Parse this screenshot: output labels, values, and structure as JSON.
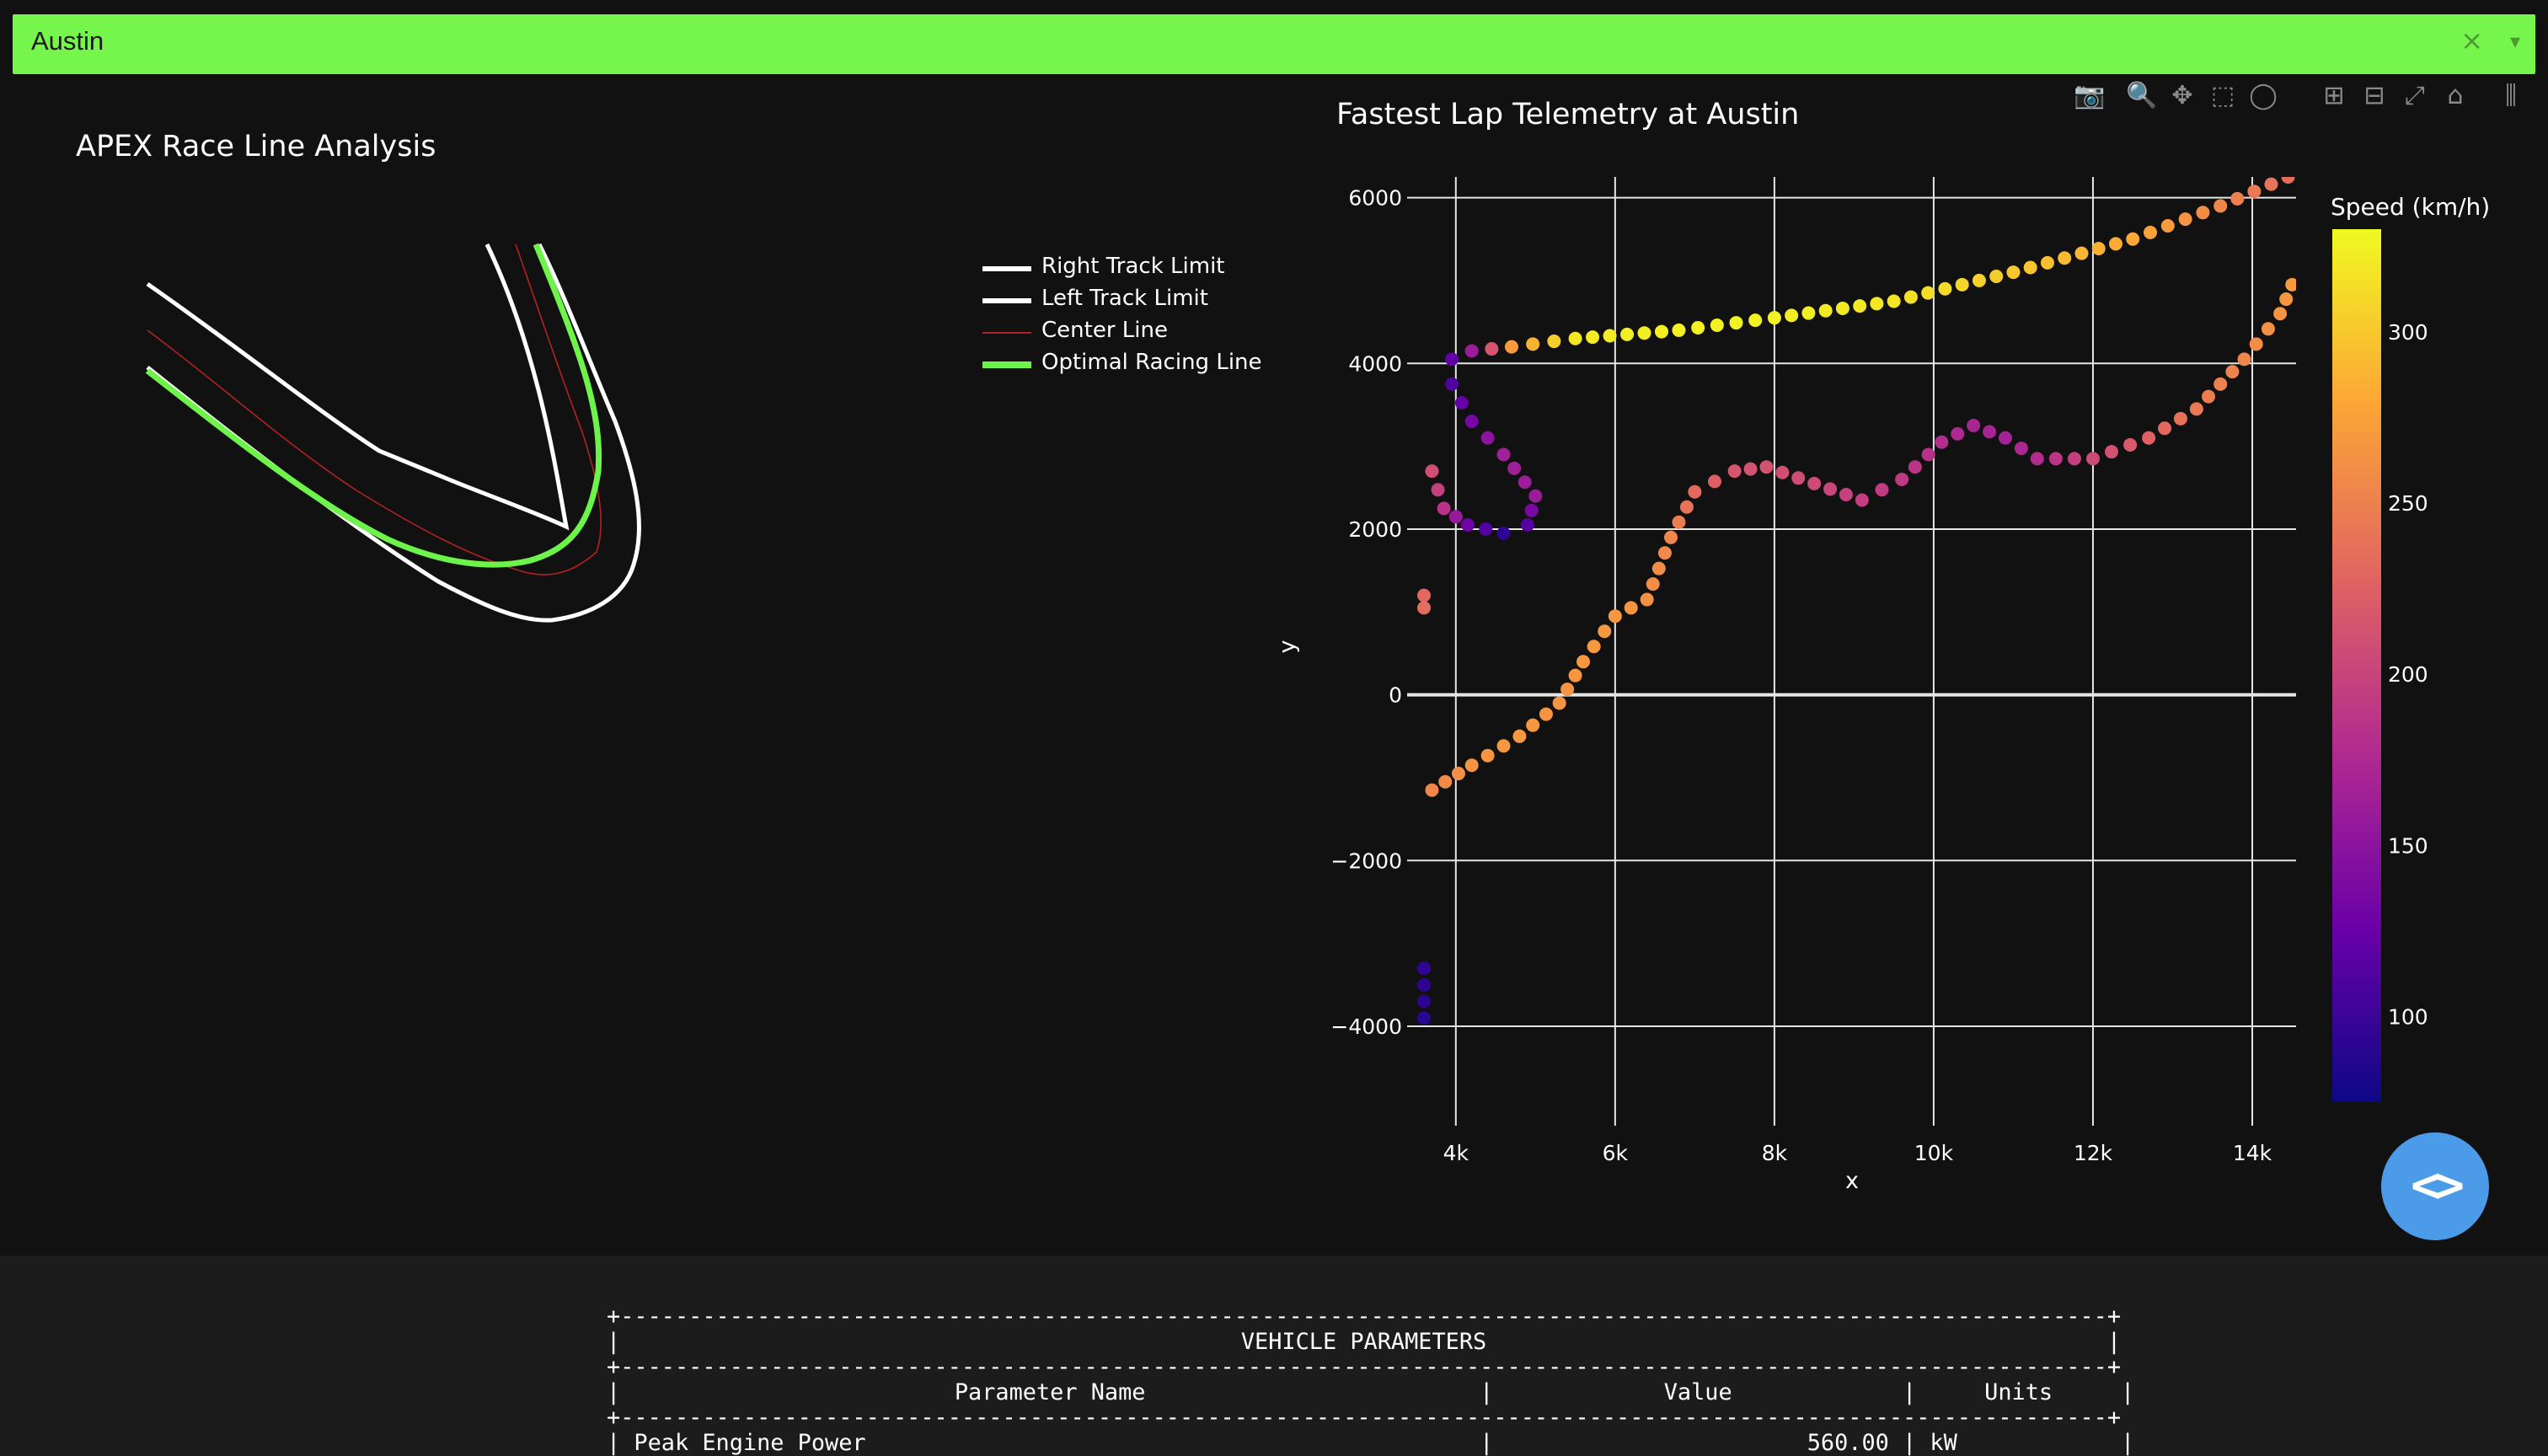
{
  "window": {
    "title": "Austin",
    "close_icon": "×",
    "menu_icon": "▾"
  },
  "left_panel": {
    "title": "APEX Race Line Analysis",
    "legend": [
      {
        "label": "Right Track Limit",
        "color": "#ffffff"
      },
      {
        "label": "Left Track Limit",
        "color": "#ffffff"
      },
      {
        "label": "Center Line",
        "color": "#b22222"
      },
      {
        "label": "Optimal Racing Line",
        "color": "#6ef34a"
      }
    ]
  },
  "right_panel": {
    "title": "Fastest Lap Telemetry at Austin",
    "modebar_icons": [
      "camera-icon",
      "zoom-icon",
      "pan-icon",
      "box-select-icon",
      "lasso-icon",
      "zoom-in-icon",
      "zoom-out-icon",
      "autoscale-icon",
      "reset-axes-icon",
      "spikelines-icon"
    ]
  },
  "chart_data": {
    "type": "scatter",
    "title": "Fastest Lap Telemetry at Austin",
    "xlabel": "x",
    "ylabel": "y",
    "xlim": [
      3600,
      14550
    ],
    "ylim": [
      -5200,
      6250
    ],
    "x_ticks": [
      4000,
      6000,
      8000,
      10000,
      12000,
      14000
    ],
    "x_tick_labels": [
      "4k",
      "6k",
      "8k",
      "10k",
      "12k",
      "14k"
    ],
    "y_ticks": [
      -4000,
      -2000,
      0,
      2000,
      4000,
      6000
    ],
    "y_tick_labels": [
      "−4000",
      "−2000",
      "0",
      "2000",
      "4000",
      "6000"
    ],
    "grid": true,
    "colorbar": {
      "title": "Speed (km/h)",
      "range": [
        75,
        330
      ],
      "ticks": [
        100,
        150,
        200,
        250,
        300
      ],
      "colorscale": [
        "#0d0887",
        "#6a00a8",
        "#b12a90",
        "#e16462",
        "#fca636",
        "#f0f921"
      ]
    },
    "series": [
      {
        "points": [
          {
            "x": 14450,
            "y": 6250,
            "speed": 235
          },
          {
            "x": 13600,
            "y": 5900,
            "speed": 255
          },
          {
            "x": 12500,
            "y": 5500,
            "speed": 280
          },
          {
            "x": 11000,
            "y": 5100,
            "speed": 300
          },
          {
            "x": 9500,
            "y": 4750,
            "speed": 318
          },
          {
            "x": 8000,
            "y": 4550,
            "speed": 325
          },
          {
            "x": 6800,
            "y": 4400,
            "speed": 325
          },
          {
            "x": 5500,
            "y": 4300,
            "speed": 320
          },
          {
            "x": 4700,
            "y": 4200,
            "speed": 270
          },
          {
            "x": 4200,
            "y": 4150,
            "speed": 160
          },
          {
            "x": 3950,
            "y": 4050,
            "speed": 120
          },
          {
            "x": 3950,
            "y": 3750,
            "speed": 110
          },
          {
            "x": 4200,
            "y": 3300,
            "speed": 135
          },
          {
            "x": 4600,
            "y": 2900,
            "speed": 165
          },
          {
            "x": 5000,
            "y": 2400,
            "speed": 160
          },
          {
            "x": 4900,
            "y": 2050,
            "speed": 115
          },
          {
            "x": 4600,
            "y": 1950,
            "speed": 95
          },
          {
            "x": 4150,
            "y": 2050,
            "speed": 130
          },
          {
            "x": 3850,
            "y": 2250,
            "speed": 185
          },
          {
            "x": 3700,
            "y": 2700,
            "speed": 210
          }
        ]
      },
      {
        "points": [
          {
            "x": 3700,
            "y": -1150,
            "speed": 255
          },
          {
            "x": 4200,
            "y": -850,
            "speed": 265
          },
          {
            "x": 4800,
            "y": -500,
            "speed": 268
          },
          {
            "x": 5300,
            "y": -100,
            "speed": 265
          },
          {
            "x": 5600,
            "y": 400,
            "speed": 268
          },
          {
            "x": 6000,
            "y": 950,
            "speed": 268
          },
          {
            "x": 6400,
            "y": 1150,
            "speed": 262
          },
          {
            "x": 6700,
            "y": 1900,
            "speed": 255
          },
          {
            "x": 7000,
            "y": 2450,
            "speed": 232
          },
          {
            "x": 7500,
            "y": 2700,
            "speed": 215
          },
          {
            "x": 7900,
            "y": 2750,
            "speed": 212
          },
          {
            "x": 8500,
            "y": 2550,
            "speed": 205
          },
          {
            "x": 9100,
            "y": 2350,
            "speed": 195
          },
          {
            "x": 9600,
            "y": 2600,
            "speed": 190
          },
          {
            "x": 10100,
            "y": 3050,
            "speed": 180
          },
          {
            "x": 10500,
            "y": 3250,
            "speed": 170
          },
          {
            "x": 10900,
            "y": 3100,
            "speed": 168
          },
          {
            "x": 11300,
            "y": 2850,
            "speed": 178
          },
          {
            "x": 12000,
            "y": 2850,
            "speed": 205
          },
          {
            "x": 12700,
            "y": 3100,
            "speed": 225
          },
          {
            "x": 13300,
            "y": 3450,
            "speed": 245
          },
          {
            "x": 13900,
            "y": 4050,
            "speed": 255
          },
          {
            "x": 14350,
            "y": 4600,
            "speed": 265
          },
          {
            "x": 14500,
            "y": 4950,
            "speed": 270
          }
        ]
      },
      {
        "points": [
          {
            "x": 3600,
            "y": 1200,
            "speed": 230
          },
          {
            "x": 3600,
            "y": 1050,
            "speed": 235
          }
        ]
      },
      {
        "points": [
          {
            "x": 3600,
            "y": -3300,
            "speed": 95
          },
          {
            "x": 3600,
            "y": -3900,
            "speed": 90
          }
        ]
      }
    ]
  },
  "vehicle_table": {
    "title": "VEHICLE PARAMETERS",
    "headers": [
      "Parameter Name",
      "Value",
      "Units"
    ],
    "rows": [
      [
        "Peak Engine Power",
        "560.00",
        "kW"
      ]
    ]
  },
  "code_button": {
    "icon": "code-icon",
    "glyph": "<>"
  }
}
